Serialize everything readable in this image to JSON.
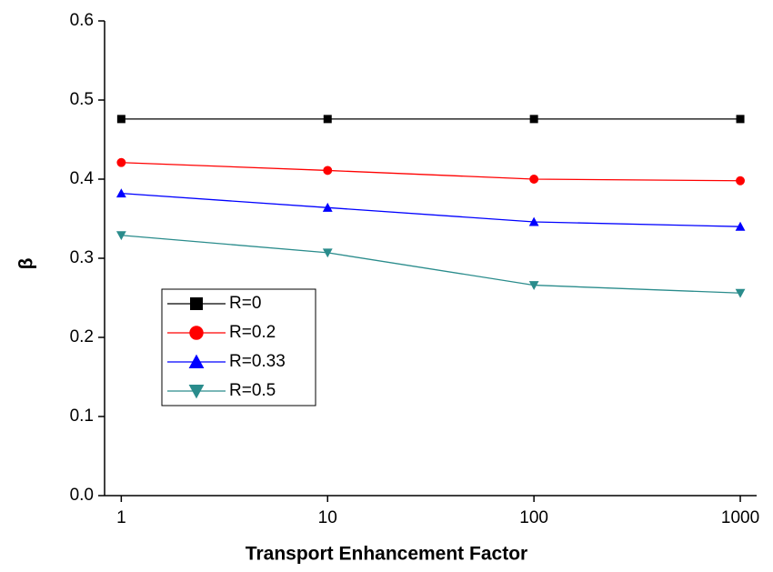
{
  "chart_data": {
    "type": "line",
    "x_label": "Transport Enhancement Factor",
    "y_label": "β",
    "x": [
      1,
      10,
      100,
      1000
    ],
    "xscale": "log",
    "xlim": [
      0.83,
      1200
    ],
    "xticks": [
      1,
      10,
      100,
      1000
    ],
    "ylim": [
      0,
      0.6
    ],
    "yticks": [
      {
        "value": 0,
        "label": "0.0"
      },
      0.1,
      0.2,
      0.3,
      0.4,
      0.5,
      0.6
    ],
    "grid": false,
    "legend_position": "center left",
    "series": [
      {
        "name": "R=0",
        "color": "#000000",
        "marker": "square",
        "values": [
          0.476,
          0.476,
          0.476,
          0.476
        ]
      },
      {
        "name": "R=0.2",
        "color": "#ff0000",
        "marker": "circle",
        "values": [
          0.421,
          0.411,
          0.4,
          0.398
        ]
      },
      {
        "name": "R=0.33",
        "color": "#0000ff",
        "marker": "triangle-up",
        "values": [
          0.382,
          0.364,
          0.346,
          0.34
        ]
      },
      {
        "name": "R=0.5",
        "color": "#2a8c8c",
        "marker": "triangle-down",
        "values": [
          0.329,
          0.307,
          0.266,
          0.256
        ]
      }
    ]
  }
}
